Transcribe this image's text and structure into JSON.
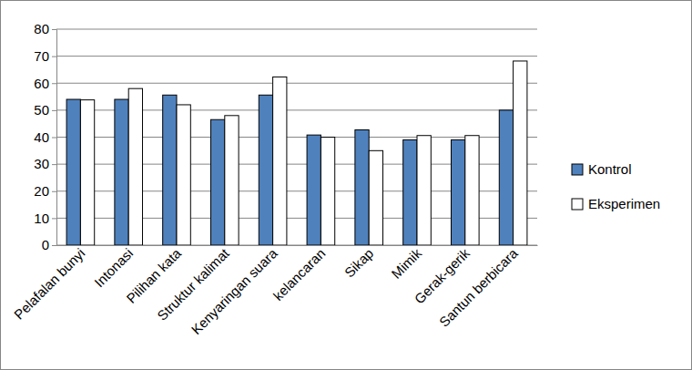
{
  "chart_data": {
    "type": "bar",
    "categories": [
      "Pelafalan bunyi",
      "Intonasi",
      "Pilihan kata",
      "Struktur kalimat",
      "Kenyaringan suara",
      "kelancaran",
      "Sikap",
      "Mimik",
      "Gerak-gerik",
      "Santun berbicara"
    ],
    "series": [
      {
        "name": "Kontrol",
        "color": "#4f81bd",
        "values": [
          54,
          54,
          55.6,
          46.5,
          55.6,
          40.8,
          42.7,
          39,
          39,
          50
        ]
      },
      {
        "name": "Eksperimen",
        "color": "#ffffff",
        "values": [
          53.8,
          58,
          52,
          48,
          62.3,
          40,
          35,
          40.6,
          40.6,
          68.2
        ]
      }
    ],
    "ylim": [
      0,
      80
    ],
    "yticks": [
      0,
      10,
      20,
      30,
      40,
      50,
      60,
      70,
      80
    ],
    "grid": true,
    "legend": "right"
  }
}
